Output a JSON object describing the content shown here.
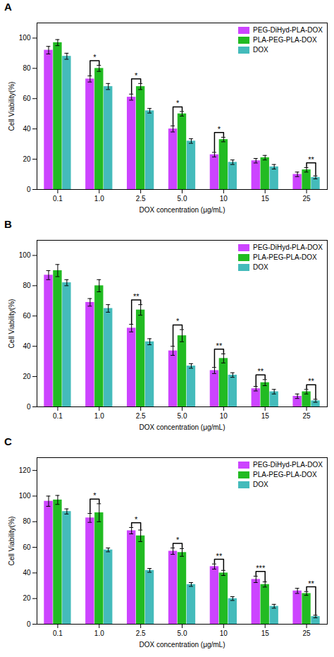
{
  "chart_data": [
    {
      "type": "bar",
      "title": "A",
      "xlabel": "DOX concentration (μg/mL)",
      "ylabel": "Cell Viability(%)",
      "categories": [
        "0.1",
        "1.0",
        "2.5",
        "5.0",
        "10",
        "15",
        "25"
      ],
      "series": [
        {
          "name": "PEG-DiHyd-PLA-DOX",
          "color": "#CC44FF",
          "values": [
            92,
            73,
            61,
            40,
            23,
            19,
            10
          ],
          "errors": [
            2.5,
            2.0,
            2.0,
            2.0,
            1.5,
            1.5,
            1.5
          ]
        },
        {
          "name": "PLA-PEG-PLA-DOX",
          "color": "#22BB22",
          "values": [
            97,
            80,
            68,
            50,
            33,
            21,
            13
          ],
          "errors": [
            2.0,
            2.0,
            2.0,
            1.5,
            1.5,
            1.5,
            1.5
          ]
        },
        {
          "name": "DOX",
          "color": "#44BBBB",
          "values": [
            88,
            68,
            52,
            32,
            18,
            15,
            8
          ],
          "errors": [
            2.0,
            2.0,
            1.5,
            1.5,
            1.5,
            1.5,
            1.0
          ]
        }
      ],
      "annotations": [
        {
          "category": "1.0",
          "series": [
            "PEG-DiHyd-PLA-DOX",
            "PLA-PEG-PLA-DOX"
          ],
          "label": "*"
        },
        {
          "category": "2.5",
          "series": [
            "PEG-DiHyd-PLA-DOX",
            "PLA-PEG-PLA-DOX"
          ],
          "label": "*"
        },
        {
          "category": "5.0",
          "series": [
            "PEG-DiHyd-PLA-DOX",
            "PLA-PEG-PLA-DOX"
          ],
          "label": "*"
        },
        {
          "category": "10",
          "series": [
            "PEG-DiHyd-PLA-DOX",
            "PLA-PEG-PLA-DOX"
          ],
          "label": "*"
        },
        {
          "category": "25",
          "series": [
            "PLA-PEG-PLA-DOX",
            "DOX"
          ],
          "label": "**"
        }
      ],
      "ylim": [
        0,
        110
      ],
      "yticks": [
        0,
        20,
        40,
        60,
        80,
        100
      ],
      "legend": "upper right"
    },
    {
      "type": "bar",
      "title": "B",
      "xlabel": "DOX concentration (μg/mL)",
      "ylabel": "Cell Viability(%)",
      "categories": [
        "0.1",
        "1.0",
        "2.5",
        "5.0",
        "10",
        "15",
        "25"
      ],
      "series": [
        {
          "name": "PEG-DiHyd-PLA-DOX",
          "color": "#CC44FF",
          "values": [
            87,
            69,
            52,
            37,
            24,
            12,
            7
          ],
          "errors": [
            3.0,
            2.5,
            2.5,
            3.0,
            2.0,
            1.5,
            1.5
          ]
        },
        {
          "name": "PLA-PEG-PLA-DOX",
          "color": "#22BB22",
          "values": [
            90,
            80,
            64,
            47,
            32,
            16,
            10
          ],
          "errors": [
            4.0,
            4.0,
            3.5,
            4.0,
            3.0,
            2.0,
            1.5
          ]
        },
        {
          "name": "DOX",
          "color": "#44BBBB",
          "values": [
            82,
            65,
            43,
            27,
            21,
            10,
            4
          ],
          "errors": [
            2.0,
            2.5,
            2.0,
            1.5,
            1.5,
            1.5,
            1.0
          ]
        }
      ],
      "annotations": [
        {
          "category": "2.5",
          "series": [
            "PEG-DiHyd-PLA-DOX",
            "PLA-PEG-PLA-DOX"
          ],
          "label": "**"
        },
        {
          "category": "5.0",
          "series": [
            "PEG-DiHyd-PLA-DOX",
            "PLA-PEG-PLA-DOX"
          ],
          "label": "*"
        },
        {
          "category": "10",
          "series": [
            "PEG-DiHyd-PLA-DOX",
            "PLA-PEG-PLA-DOX"
          ],
          "label": "**"
        },
        {
          "category": "15",
          "series": [
            "PEG-DiHyd-PLA-DOX",
            "PLA-PEG-PLA-DOX"
          ],
          "label": "**"
        },
        {
          "category": "25",
          "series": [
            "PLA-PEG-PLA-DOX",
            "DOX"
          ],
          "label": "**"
        }
      ],
      "ylim": [
        0,
        110
      ],
      "yticks": [
        0,
        20,
        40,
        60,
        80,
        100
      ],
      "legend": "upper right"
    },
    {
      "type": "bar",
      "title": "C",
      "xlabel": "DOX concentration (μg/mL)",
      "ylabel": "Cell Viability(%)",
      "categories": [
        "0.1",
        "1.0",
        "2.5",
        "5.0",
        "10",
        "15",
        "25"
      ],
      "series": [
        {
          "name": "PEG-DiHyd-PLA-DOX",
          "color": "#CC44FF",
          "values": [
            96,
            83,
            73,
            57,
            45,
            35,
            26
          ],
          "errors": [
            4.0,
            3.5,
            2.5,
            2.5,
            2.0,
            2.5,
            2.0
          ]
        },
        {
          "name": "PLA-PEG-PLA-DOX",
          "color": "#22BB22",
          "values": [
            97,
            87,
            69,
            56,
            40,
            31,
            24
          ],
          "errors": [
            3.5,
            7.0,
            4.5,
            3.0,
            2.0,
            2.0,
            1.5
          ]
        },
        {
          "name": "DOX",
          "color": "#44BBBB",
          "values": [
            88,
            58,
            42,
            31,
            20,
            14,
            6
          ],
          "errors": [
            2.0,
            1.5,
            1.5,
            1.5,
            1.5,
            1.5,
            1.0
          ]
        }
      ],
      "annotations": [
        {
          "category": "1.0",
          "series": [
            "PEG-DiHyd-PLA-DOX",
            "PLA-PEG-PLA-DOX"
          ],
          "label": "*"
        },
        {
          "category": "2.5",
          "series": [
            "PEG-DiHyd-PLA-DOX",
            "PLA-PEG-PLA-DOX"
          ],
          "label": "*"
        },
        {
          "category": "5.0",
          "series": [
            "PEG-DiHyd-PLA-DOX",
            "PLA-PEG-PLA-DOX"
          ],
          "label": "*"
        },
        {
          "category": "10",
          "series": [
            "PEG-DiHyd-PLA-DOX",
            "PLA-PEG-PLA-DOX"
          ],
          "label": "**"
        },
        {
          "category": "15",
          "series": [
            "PEG-DiHyd-PLA-DOX",
            "PLA-PEG-PLA-DOX"
          ],
          "label": "***"
        },
        {
          "category": "25",
          "series": [
            "PLA-PEG-PLA-DOX",
            "DOX"
          ],
          "label": "**"
        }
      ],
      "ylim": [
        0,
        130
      ],
      "yticks": [
        0,
        20,
        40,
        60,
        80,
        100,
        120
      ],
      "legend": "upper right"
    }
  ]
}
